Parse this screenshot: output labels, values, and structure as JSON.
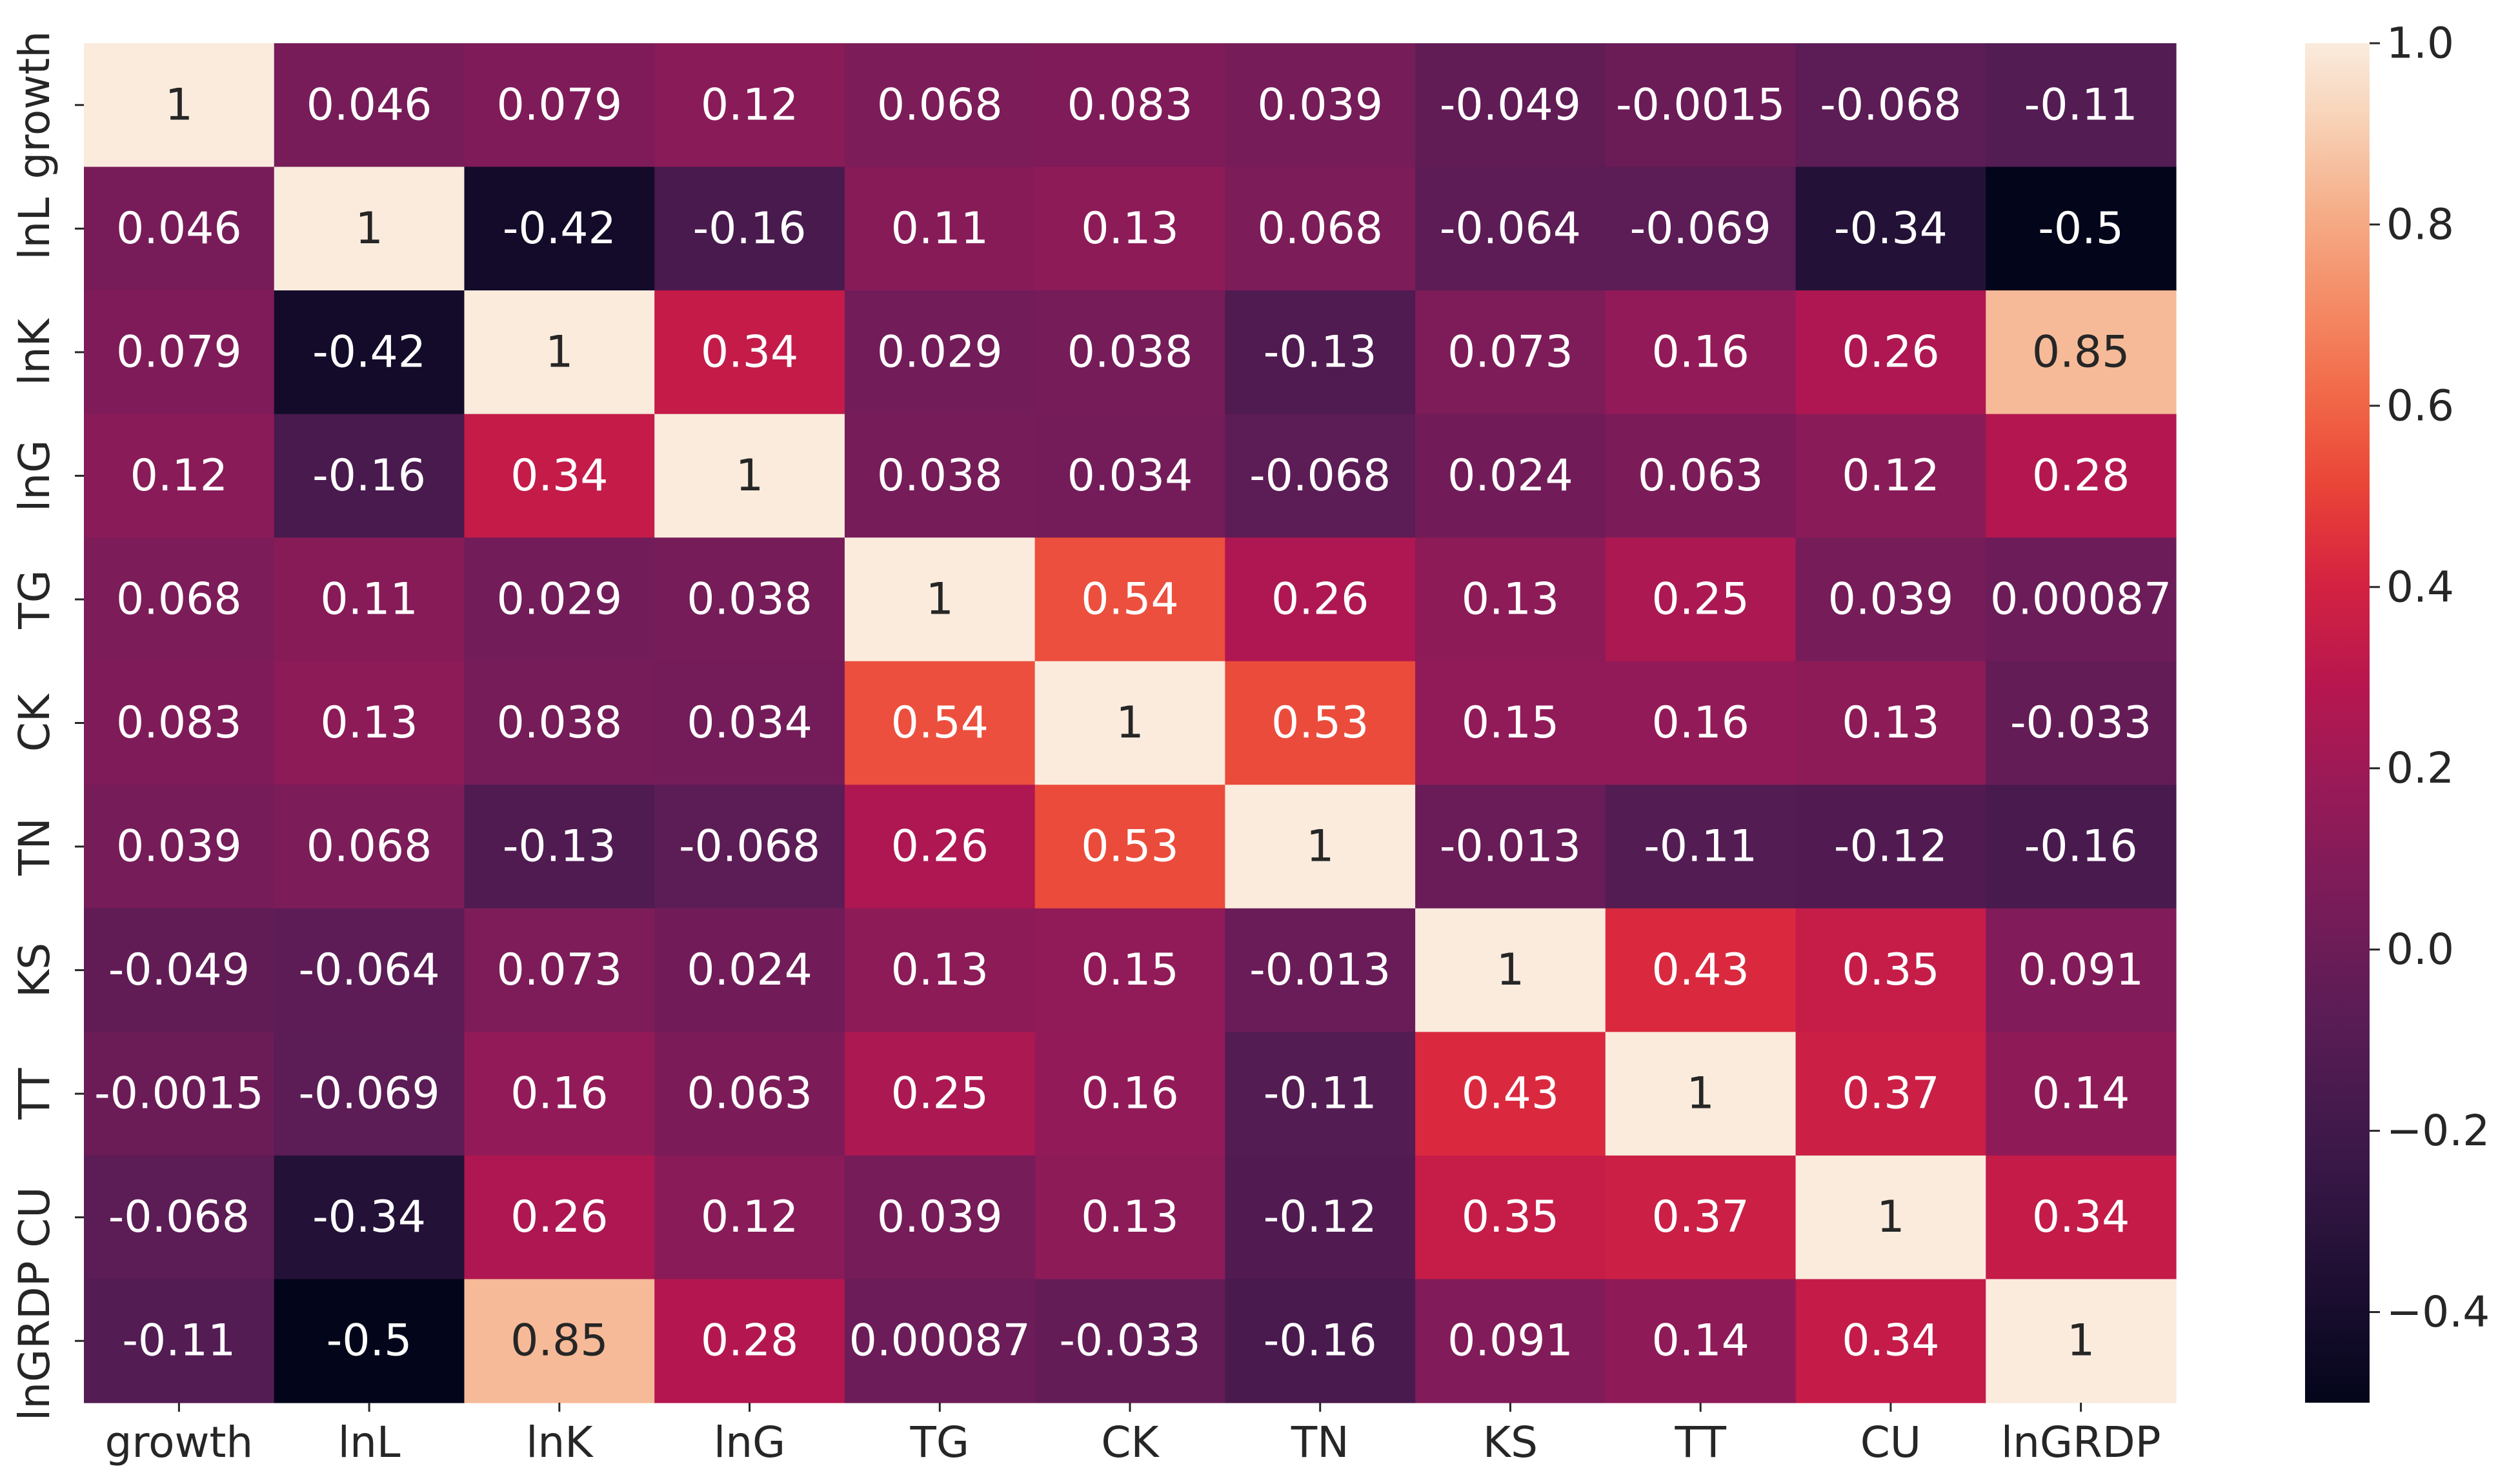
{
  "chart_data": {
    "type": "heatmap",
    "title": "",
    "xlabel": "",
    "ylabel": "",
    "categories": [
      "growth",
      "lnL",
      "lnK",
      "lnG",
      "TG",
      "CK",
      "TN",
      "KS",
      "TT",
      "CU",
      "lnGRDP"
    ],
    "values": [
      [
        1,
        0.046,
        0.079,
        0.12,
        0.068,
        0.083,
        0.039,
        -0.049,
        -0.0015,
        -0.068,
        -0.11
      ],
      [
        0.046,
        1,
        -0.42,
        -0.16,
        0.11,
        0.13,
        0.068,
        -0.064,
        -0.069,
        -0.34,
        -0.5
      ],
      [
        0.079,
        -0.42,
        1,
        0.34,
        0.029,
        0.038,
        -0.13,
        0.073,
        0.16,
        0.26,
        0.85
      ],
      [
        0.12,
        -0.16,
        0.34,
        1,
        0.038,
        0.034,
        -0.068,
        0.024,
        0.063,
        0.12,
        0.28
      ],
      [
        0.068,
        0.11,
        0.029,
        0.038,
        1,
        0.54,
        0.26,
        0.13,
        0.25,
        0.039,
        0.00087
      ],
      [
        0.083,
        0.13,
        0.038,
        0.034,
        0.54,
        1,
        0.53,
        0.15,
        0.16,
        0.13,
        -0.033
      ],
      [
        0.039,
        0.068,
        -0.13,
        -0.068,
        0.26,
        0.53,
        1,
        -0.013,
        -0.11,
        -0.12,
        -0.16
      ],
      [
        -0.049,
        -0.064,
        0.073,
        0.024,
        0.13,
        0.15,
        -0.013,
        1,
        0.43,
        0.35,
        0.091
      ],
      [
        -0.0015,
        -0.069,
        0.16,
        0.063,
        0.25,
        0.16,
        -0.11,
        0.43,
        1,
        0.37,
        0.14
      ],
      [
        -0.068,
        -0.34,
        0.26,
        0.12,
        0.039,
        0.13,
        -0.12,
        0.35,
        0.37,
        1,
        0.34
      ],
      [
        -0.11,
        -0.5,
        0.85,
        0.28,
        0.00087,
        -0.033,
        -0.16,
        0.091,
        0.14,
        0.34,
        1
      ]
    ],
    "colorbar": {
      "range": [
        -0.5,
        1.0
      ],
      "ticks": [
        1.0,
        0.8,
        0.6,
        0.4,
        0.2,
        0.0,
        -0.2,
        -0.4
      ],
      "tick_labels": [
        "1.0",
        "0.8",
        "0.6",
        "0.4",
        "0.2",
        "0.0",
        "−0.2",
        "−0.4"
      ],
      "colormap": "rocket"
    },
    "grid": false,
    "legend": "colorbar-right"
  }
}
